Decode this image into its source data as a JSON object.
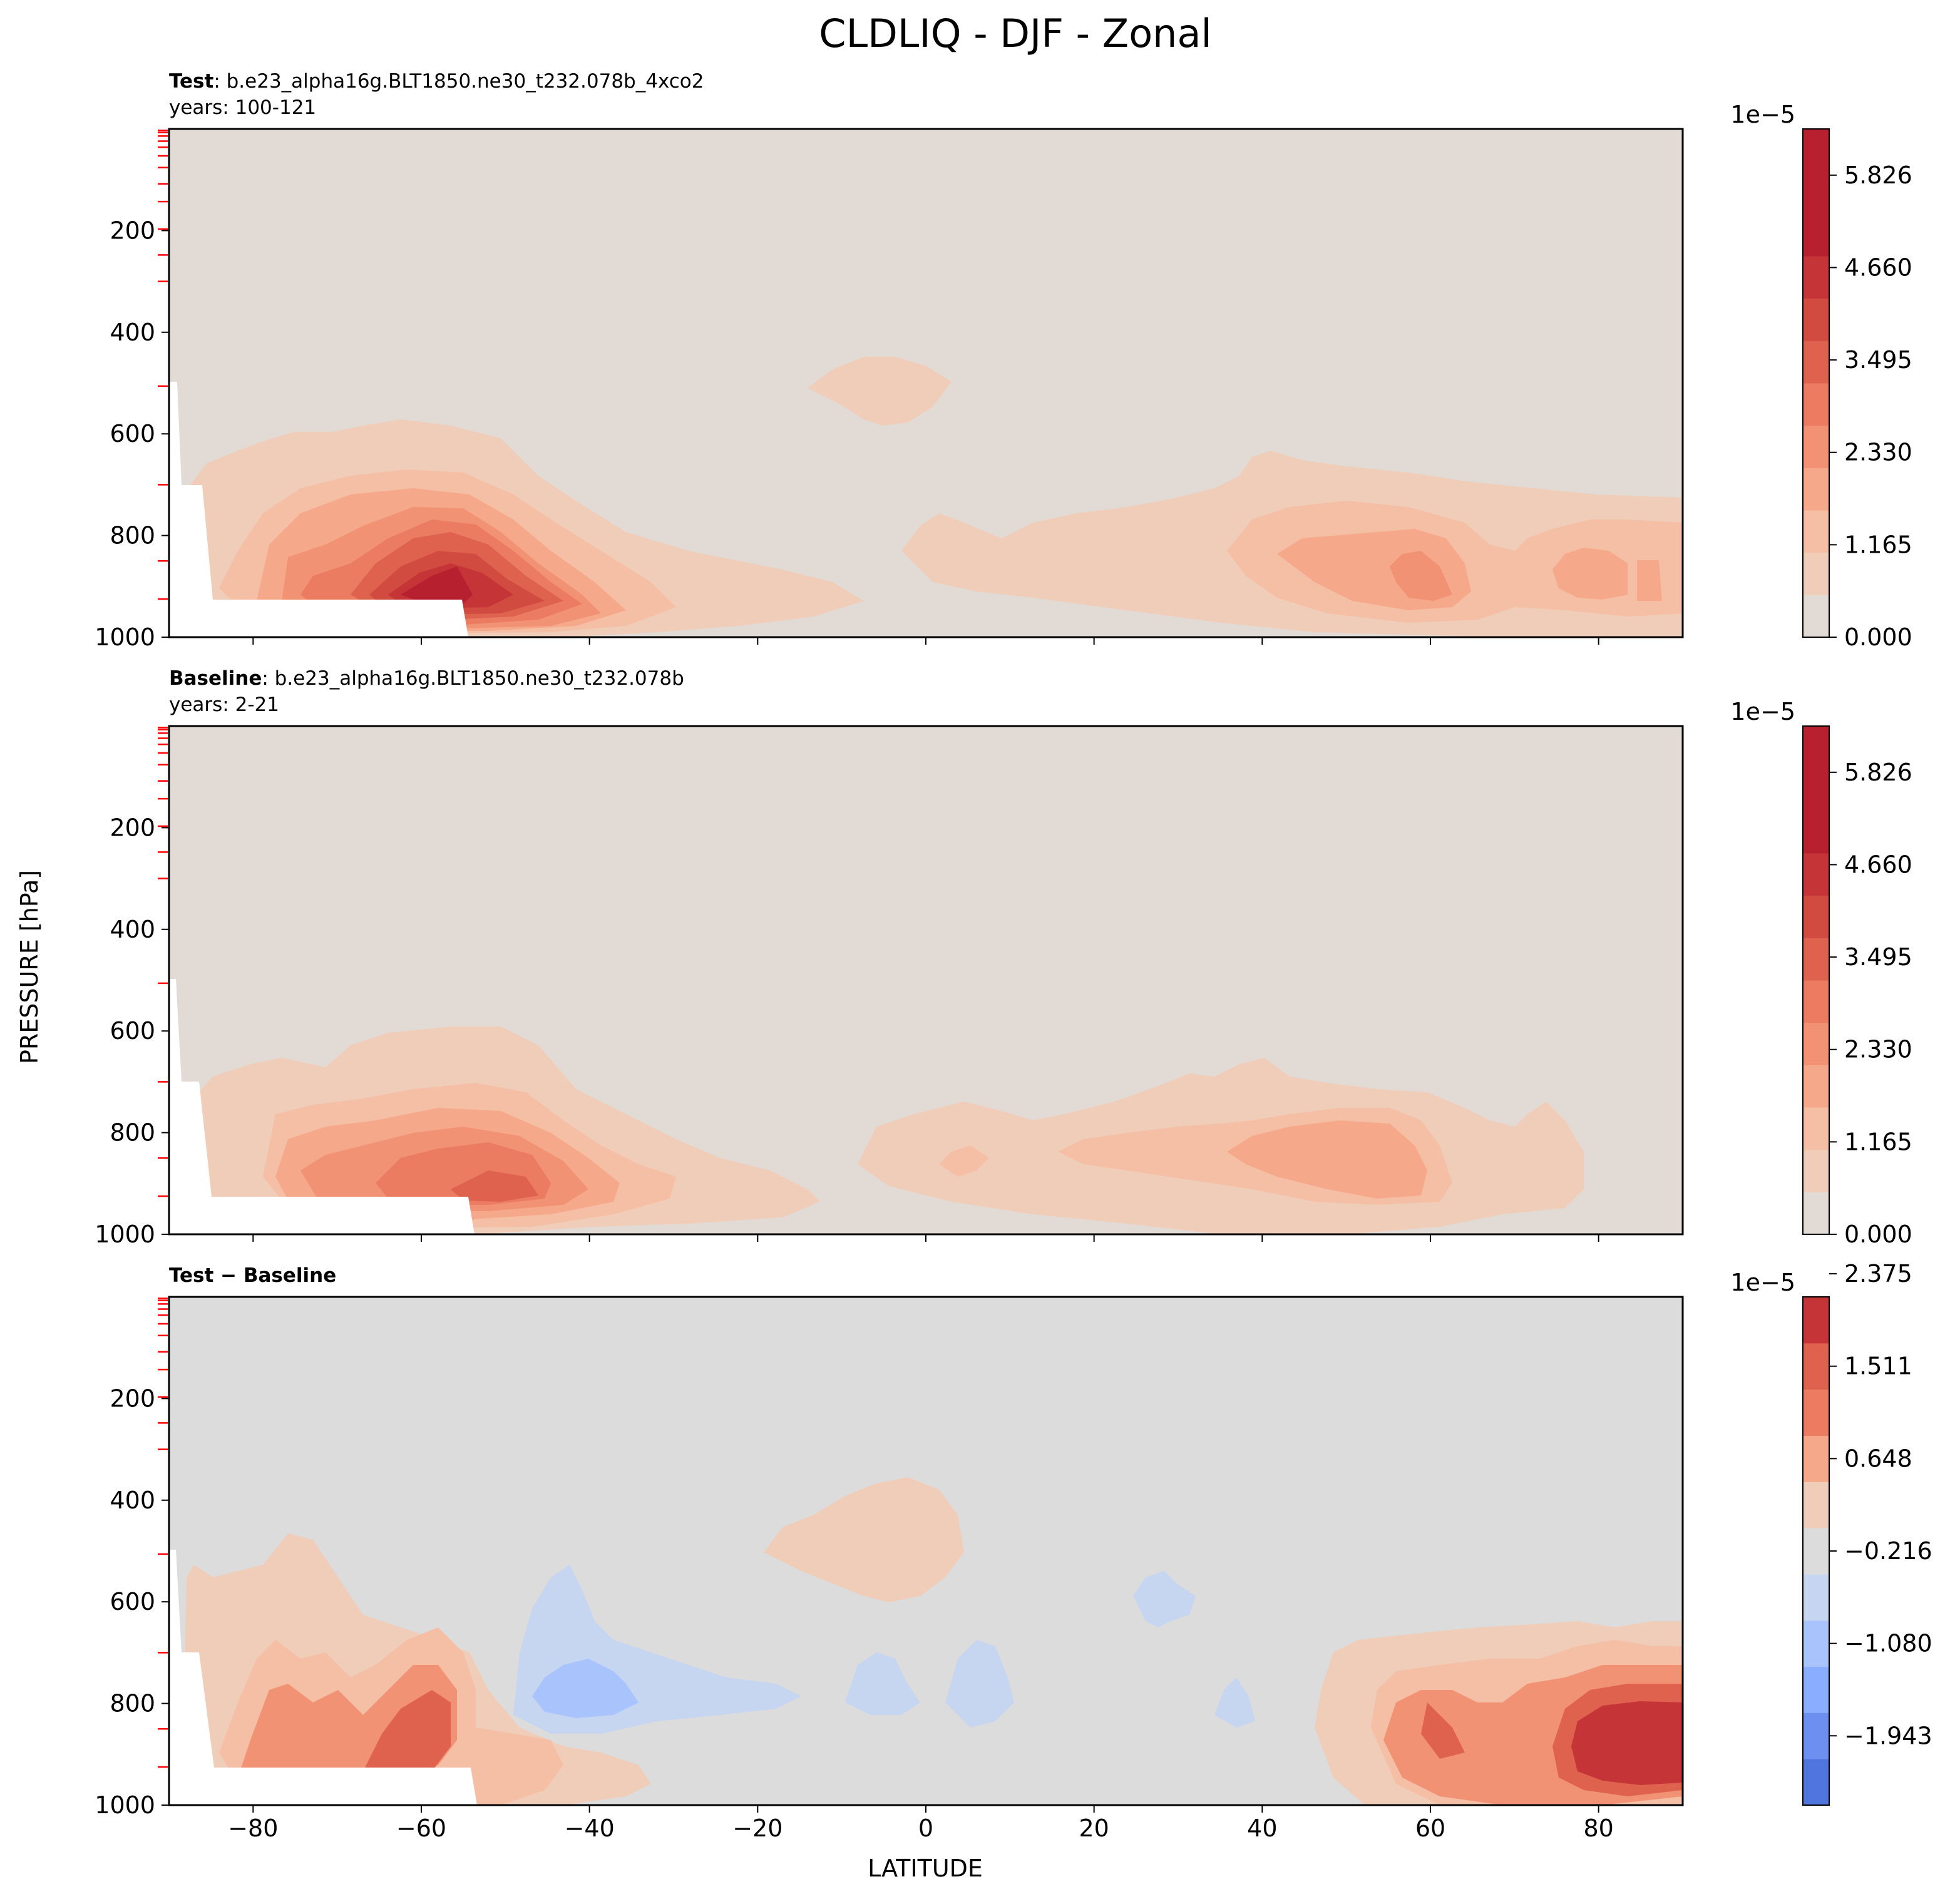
{
  "figure": {
    "title": "CLDLIQ - DJF - Zonal",
    "xlabel": "LATITUDE",
    "ylabel": "PRESSURE [hPa]"
  },
  "colors": {
    "fill_bg": "#e2dad5",
    "diff_bg": "#dcdcdc",
    "pos": [
      "#e2dad5",
      "#f0cdb9",
      "#f5bfa5",
      "#f5a98a",
      "#f29274",
      "#eb7b61",
      "#df624f",
      "#d24b41",
      "#c53436",
      "#b6202f"
    ],
    "neg": [
      "#c6d5f0",
      "#a9c4fd",
      "#8aadfd",
      "#6c8ff0",
      "#5075dc"
    ],
    "level_tick": "#ff0000",
    "land_mask": "#ffffff"
  },
  "panels": [
    {
      "id": "test",
      "title_bold": "Test",
      "title_text": ": b.e23_alpha16g.BLT1850.ne30_t232.078b_4xco2",
      "years": "years: 100-121",
      "colorbar": {
        "exponent": "1e−5",
        "ticks": [
          "0.000",
          "1.165",
          "2.330",
          "3.495",
          "4.660",
          "5.826"
        ]
      }
    },
    {
      "id": "baseline",
      "title_bold": "Baseline",
      "title_text": ": b.e23_alpha16g.BLT1850.ne30_t232.078b",
      "years": "years: 2-21",
      "colorbar": {
        "exponent": "1e−5",
        "ticks": [
          "0.000",
          "1.165",
          "2.330",
          "3.495",
          "4.660",
          "5.826"
        ]
      }
    },
    {
      "id": "diff",
      "title_bold": "Test − Baseline",
      "title_text": "",
      "years": "",
      "colorbar": {
        "exponent": "1e−5",
        "ticks": [
          "−1.943",
          "−1.080",
          "−0.216",
          "0.648",
          "1.511",
          "2.375"
        ]
      }
    }
  ],
  "chart_data": {
    "type": "contourf",
    "x_label": "LATITUDE",
    "y_label": "PRESSURE [hPa]",
    "xlim": [
      -90,
      90
    ],
    "ylim": [
      1000,
      0
    ],
    "x_ticks": [
      -80,
      -60,
      -40,
      -20,
      0,
      20,
      40,
      60,
      80
    ],
    "y_ticks": [
      200,
      400,
      600,
      800,
      1000
    ],
    "model_levels_hPa": [
      3,
      7,
      14,
      24,
      36,
      53,
      76,
      108,
      143,
      197,
      248,
      300,
      506,
      700,
      850,
      925
    ],
    "panels": [
      {
        "name": "Test",
        "units_scale": "1e-5",
        "levels_min": 0.0,
        "levels_max": 5.826,
        "features": [
          {
            "label": "southern midlatitude low-level max",
            "lat": -56,
            "pressure": 900,
            "value": 5.8
          },
          {
            "label": "upper tropical patch",
            "lat": -5,
            "pressure": 500,
            "value": 0.9
          },
          {
            "label": "northern midlatitude low-level max",
            "lat": 57,
            "pressure": 870,
            "value": 3.5
          },
          {
            "label": "arctic low-level max",
            "lat": 84,
            "pressure": 860,
            "value": 3.0
          }
        ]
      },
      {
        "name": "Baseline",
        "units_scale": "1e-5",
        "levels_min": 0.0,
        "levels_max": 5.826,
        "features": [
          {
            "label": "southern midlatitude low-level max",
            "lat": -53,
            "pressure": 880,
            "value": 4.1
          },
          {
            "label": "tropical low cloud",
            "lat": 5,
            "pressure": 850,
            "value": 1.2
          },
          {
            "label": "northern midlatitude low-level max",
            "lat": 55,
            "pressure": 860,
            "value": 2.5
          }
        ]
      },
      {
        "name": "Test − Baseline",
        "units_scale": "1e-5",
        "levels_min": -1.943,
        "levels_max": 2.375,
        "features": [
          {
            "label": "southern ocean increase",
            "lat": -65,
            "pressure": 900,
            "value": 1.4
          },
          {
            "label": "southern subtropical decrease",
            "lat": -43,
            "pressure": 820,
            "value": -0.9
          },
          {
            "label": "upper tropical increase",
            "lat": -5,
            "pressure": 500,
            "value": 0.5
          },
          {
            "label": "arctic increase",
            "lat": 84,
            "pressure": 860,
            "value": 2.2
          }
        ]
      }
    ]
  }
}
